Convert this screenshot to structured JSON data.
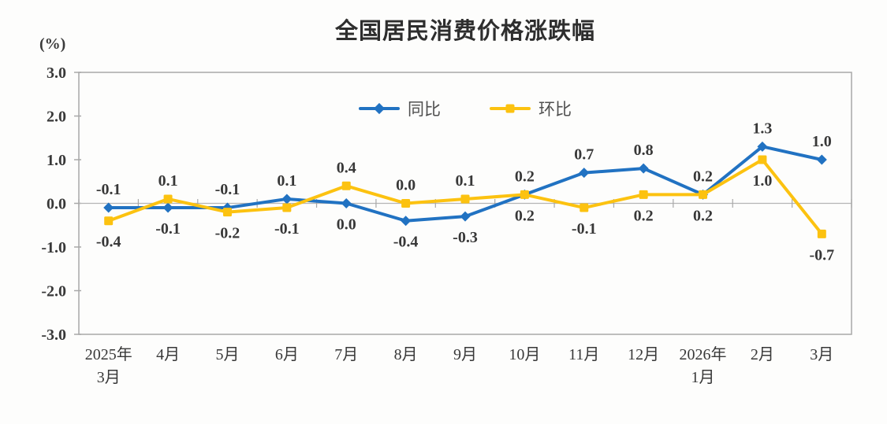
{
  "chart_data": {
    "type": "line",
    "title": "全国居民消费价格涨跌幅",
    "unit_label": "(%)",
    "categories": [
      [
        "2025年",
        "3月"
      ],
      [
        "4月"
      ],
      [
        "5月"
      ],
      [
        "6月"
      ],
      [
        "7月"
      ],
      [
        "8月"
      ],
      [
        "9月"
      ],
      [
        "10月"
      ],
      [
        "11月"
      ],
      [
        "12月"
      ],
      [
        "2026年",
        "1月"
      ],
      [
        "2月"
      ],
      [
        "3月"
      ]
    ],
    "y_ticks": [
      3.0,
      2.0,
      1.0,
      0.0,
      -1.0,
      -2.0,
      -3.0
    ],
    "ylim": [
      -3.0,
      3.0
    ],
    "grid": false,
    "legend_position": "top-center",
    "axis_color": "#a8a8a8",
    "zero_line_color": "#b5b5b5",
    "label_text_color": "#383838",
    "series": [
      {
        "id": "yoy",
        "name": "同比",
        "color": "#2172c2",
        "marker": "diamond",
        "values": [
          -0.1,
          -0.1,
          -0.1,
          0.1,
          0.0,
          -0.4,
          -0.3,
          0.2,
          0.7,
          0.8,
          0.2,
          1.3,
          1.0
        ],
        "label_side": [
          "above",
          "below",
          "above",
          "above",
          "below",
          "below",
          "below",
          "above",
          "above",
          "above",
          "above",
          "above",
          "above"
        ]
      },
      {
        "id": "mom",
        "name": "环比",
        "color": "#fcc210",
        "marker": "square",
        "values": [
          -0.4,
          0.1,
          -0.2,
          -0.1,
          0.4,
          0.0,
          0.1,
          0.2,
          -0.1,
          0.2,
          0.2,
          1.0,
          -0.7
        ],
        "label_side": [
          "below",
          "above",
          "below",
          "below",
          "above",
          "above",
          "above",
          "below",
          "below",
          "below",
          "below",
          "below",
          "below"
        ]
      }
    ]
  }
}
